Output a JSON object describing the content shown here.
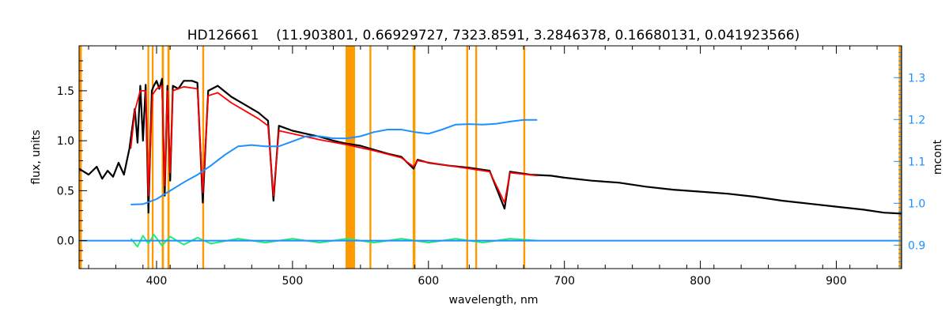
{
  "chart_data": {
    "type": "line",
    "title": "HD126661    (11.903801, 0.66929727, 7323.8591, 3.2846378, 0.16680131, 0.041923566)",
    "xlabel": "wavelength, nm",
    "ylabel": "flux, units",
    "y2label": "mcont",
    "xlim": [
      343,
      948
    ],
    "ylim": [
      -0.28,
      1.95
    ],
    "y2lim": [
      0.844,
      1.376
    ],
    "x_ticks": [
      400,
      500,
      600,
      700,
      800,
      900
    ],
    "y_ticks": [
      0.0,
      0.5,
      1.0,
      1.5
    ],
    "y_tick_labels": [
      "0.0",
      "0.5",
      "1.0",
      "1.5"
    ],
    "y2_ticks": [
      0.9,
      1.0,
      1.1,
      1.2,
      1.3
    ],
    "y2_tick_labels": [
      "0.9",
      "1.0",
      "1.1",
      "1.2",
      "1.3"
    ],
    "grid": false,
    "line_masks": [
      {
        "from": 343,
        "to": 345
      },
      {
        "from": 393.3,
        "to": 394.6
      },
      {
        "from": 396.5,
        "to": 397.8
      },
      {
        "from": 403.8,
        "to": 405.4
      },
      {
        "from": 408.0,
        "to": 409.6
      },
      {
        "from": 433.6,
        "to": 435.0
      },
      {
        "from": 539.0,
        "to": 546.0
      },
      {
        "from": 556.6,
        "to": 558.0
      },
      {
        "from": 588.4,
        "to": 590.4
      },
      {
        "from": 627.8,
        "to": 629.2
      },
      {
        "from": 634.4,
        "to": 635.8
      },
      {
        "from": 669.8,
        "to": 671.2
      },
      {
        "from": 946,
        "to": 948
      }
    ],
    "series": [
      {
        "key": "observed",
        "color": "#000000",
        "points": [
          [
            343,
            0.72
          ],
          [
            350,
            0.66
          ],
          [
            356,
            0.74
          ],
          [
            360,
            0.62
          ],
          [
            364,
            0.7
          ],
          [
            368,
            0.64
          ],
          [
            372,
            0.78
          ],
          [
            376,
            0.66
          ],
          [
            380,
            0.92
          ],
          [
            384,
            1.32
          ],
          [
            386,
            0.98
          ],
          [
            388,
            1.55
          ],
          [
            390,
            1.0
          ],
          [
            392,
            1.56
          ],
          [
            394,
            0.28
          ],
          [
            396.5,
            1.5
          ],
          [
            398,
            1.55
          ],
          [
            400,
            1.6
          ],
          [
            402,
            1.52
          ],
          [
            404,
            1.62
          ],
          [
            406,
            0.45
          ],
          [
            408,
            1.55
          ],
          [
            410,
            0.6
          ],
          [
            412,
            1.55
          ],
          [
            416,
            1.52
          ],
          [
            420,
            1.6
          ],
          [
            426,
            1.6
          ],
          [
            430,
            1.58
          ],
          [
            434,
            0.38
          ],
          [
            438,
            1.5
          ],
          [
            445,
            1.55
          ],
          [
            455,
            1.44
          ],
          [
            465,
            1.36
          ],
          [
            475,
            1.28
          ],
          [
            482,
            1.2
          ],
          [
            486,
            0.4
          ],
          [
            490,
            1.15
          ],
          [
            500,
            1.1
          ],
          [
            510,
            1.07
          ],
          [
            520,
            1.04
          ],
          [
            530,
            1.0
          ],
          [
            540,
            0.97
          ],
          [
            550,
            0.95
          ],
          [
            560,
            0.91
          ],
          [
            570,
            0.87
          ],
          [
            580,
            0.84
          ],
          [
            589,
            0.72
          ],
          [
            592,
            0.81
          ],
          [
            600,
            0.78
          ],
          [
            615,
            0.75
          ],
          [
            630,
            0.73
          ],
          [
            645,
            0.7
          ],
          [
            656,
            0.32
          ],
          [
            660,
            0.69
          ],
          [
            675,
            0.66
          ],
          [
            690,
            0.65
          ],
          [
            700,
            0.63
          ],
          [
            720,
            0.6
          ],
          [
            740,
            0.58
          ],
          [
            760,
            0.54
          ],
          [
            780,
            0.51
          ],
          [
            800,
            0.49
          ],
          [
            820,
            0.47
          ],
          [
            840,
            0.44
          ],
          [
            860,
            0.4
          ],
          [
            880,
            0.37
          ],
          [
            900,
            0.34
          ],
          [
            920,
            0.31
          ],
          [
            935,
            0.28
          ],
          [
            948,
            0.27
          ]
        ]
      },
      {
        "key": "model",
        "color": "#ff0000",
        "points": [
          [
            381,
            0.92
          ],
          [
            384,
            1.3
          ],
          [
            388,
            1.5
          ],
          [
            392,
            1.5
          ],
          [
            394,
            0.45
          ],
          [
            397,
            1.46
          ],
          [
            400,
            1.52
          ],
          [
            404,
            1.55
          ],
          [
            406,
            0.55
          ],
          [
            408,
            1.5
          ],
          [
            410,
            0.68
          ],
          [
            412,
            1.5
          ],
          [
            420,
            1.54
          ],
          [
            430,
            1.52
          ],
          [
            434,
            0.48
          ],
          [
            438,
            1.45
          ],
          [
            445,
            1.48
          ],
          [
            455,
            1.38
          ],
          [
            465,
            1.3
          ],
          [
            475,
            1.22
          ],
          [
            482,
            1.15
          ],
          [
            486,
            0.45
          ],
          [
            490,
            1.1
          ],
          [
            500,
            1.07
          ],
          [
            520,
            1.01
          ],
          [
            540,
            0.96
          ],
          [
            560,
            0.9
          ],
          [
            580,
            0.83
          ],
          [
            589,
            0.74
          ],
          [
            592,
            0.8
          ],
          [
            610,
            0.76
          ],
          [
            630,
            0.72
          ],
          [
            645,
            0.69
          ],
          [
            656,
            0.38
          ],
          [
            660,
            0.68
          ],
          [
            680,
            0.65
          ]
        ]
      },
      {
        "key": "residuals",
        "color": "#22ee77",
        "points": [
          [
            381,
            0.02
          ],
          [
            386,
            -0.06
          ],
          [
            390,
            0.05
          ],
          [
            394,
            -0.03
          ],
          [
            398,
            0.06
          ],
          [
            404,
            -0.05
          ],
          [
            410,
            0.04
          ],
          [
            420,
            -0.04
          ],
          [
            430,
            0.03
          ],
          [
            440,
            -0.03
          ],
          [
            460,
            0.02
          ],
          [
            480,
            -0.02
          ],
          [
            500,
            0.02
          ],
          [
            520,
            -0.02
          ],
          [
            540,
            0.02
          ],
          [
            560,
            -0.02
          ],
          [
            580,
            0.02
          ],
          [
            600,
            -0.02
          ],
          [
            620,
            0.02
          ],
          [
            640,
            -0.02
          ],
          [
            660,
            0.02
          ],
          [
            680,
            0.0
          ]
        ]
      },
      {
        "key": "zero-line",
        "color": "#1e90ff",
        "points": [
          [
            343,
            0.0
          ],
          [
            948,
            0.0
          ]
        ]
      },
      {
        "key": "mcont",
        "axis": "right",
        "color": "#1e90ff",
        "points": [
          [
            381,
            0.997
          ],
          [
            390,
            0.998
          ],
          [
            400,
            1.01
          ],
          [
            410,
            1.03
          ],
          [
            420,
            1.05
          ],
          [
            430,
            1.068
          ],
          [
            440,
            1.09
          ],
          [
            450,
            1.115
          ],
          [
            460,
            1.136
          ],
          [
            470,
            1.139
          ],
          [
            480,
            1.136
          ],
          [
            490,
            1.136
          ],
          [
            500,
            1.148
          ],
          [
            510,
            1.16
          ],
          [
            520,
            1.16
          ],
          [
            530,
            1.155
          ],
          [
            540,
            1.155
          ],
          [
            550,
            1.16
          ],
          [
            560,
            1.17
          ],
          [
            570,
            1.176
          ],
          [
            580,
            1.176
          ],
          [
            590,
            1.17
          ],
          [
            600,
            1.166
          ],
          [
            610,
            1.176
          ],
          [
            620,
            1.188
          ],
          [
            630,
            1.189
          ],
          [
            640,
            1.188
          ],
          [
            650,
            1.19
          ],
          [
            660,
            1.195
          ],
          [
            670,
            1.199
          ],
          [
            680,
            1.199
          ]
        ]
      }
    ]
  },
  "colors": {
    "masks": "#ff9900",
    "frame": "#000000",
    "right_axis": "#1e90ff"
  }
}
